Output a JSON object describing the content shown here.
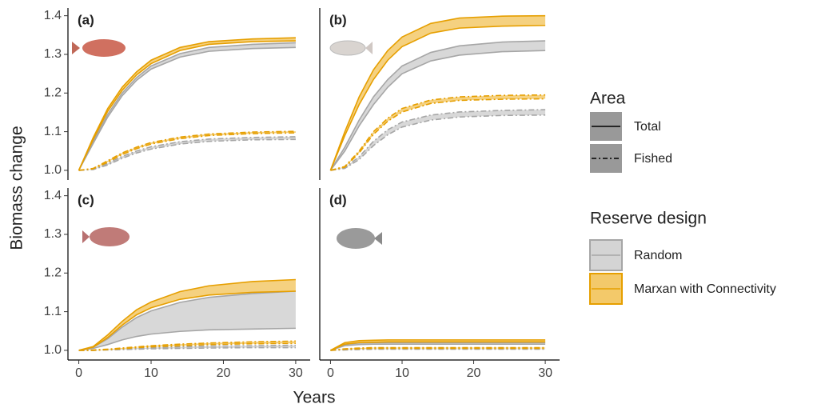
{
  "y_label": "Biomass change",
  "x_label": "Years",
  "legend": {
    "area": {
      "title": "Area",
      "total": "Total",
      "fished": "Fished"
    },
    "design": {
      "title": "Reserve design",
      "random": {
        "label": "Random",
        "color": "#a6a6a6",
        "fill": "#d4d4d4"
      },
      "marxan": {
        "label": "Marxan with Connectivity",
        "color": "#e69f00",
        "fill": "#f3c96a"
      }
    }
  },
  "chart_data": [
    {
      "type": "ribbon",
      "label": "(a)",
      "x": [
        0,
        2,
        4,
        6,
        8,
        10,
        14,
        18,
        24,
        30
      ],
      "xlim": [
        -1.5,
        32
      ],
      "ylim": [
        0.975,
        1.42
      ],
      "yticks": [
        {
          "value": 1.0,
          "label": "1.0"
        },
        1.1,
        1.2,
        1.3,
        1.4
      ],
      "ribbons": {
        "total": {
          "random": {
            "upper": [
              1,
              1.075,
              1.145,
              1.2,
              1.24,
              1.27,
              1.302,
              1.318,
              1.326,
              1.33
            ],
            "lower": [
              1,
              1.07,
              1.138,
              1.193,
              1.233,
              1.262,
              1.293,
              1.308,
              1.315,
              1.318
            ]
          },
          "marxan": {
            "upper": [
              1,
              1.085,
              1.16,
              1.215,
              1.255,
              1.285,
              1.318,
              1.333,
              1.34,
              1.343
            ],
            "lower": [
              1,
              1.08,
              1.153,
              1.207,
              1.247,
              1.276,
              1.31,
              1.326,
              1.333,
              1.335
            ]
          }
        },
        "fished": {
          "random": {
            "upper": [
              1,
              1.003,
              1.018,
              1.036,
              1.05,
              1.061,
              1.074,
              1.081,
              1.085,
              1.087
            ],
            "lower": [
              1,
              1.002,
              1.014,
              1.031,
              1.045,
              1.055,
              1.068,
              1.075,
              1.079,
              1.08
            ]
          },
          "marxan": {
            "upper": [
              1,
              1.005,
              1.025,
              1.045,
              1.06,
              1.072,
              1.086,
              1.094,
              1.099,
              1.101
            ],
            "lower": [
              1,
              1.004,
              1.021,
              1.041,
              1.056,
              1.068,
              1.082,
              1.09,
              1.095,
              1.097
            ]
          }
        }
      }
    },
    {
      "type": "ribbon",
      "label": "(b)",
      "x": [
        0,
        2,
        4,
        6,
        8,
        10,
        14,
        18,
        24,
        30
      ],
      "xlim": [
        -1.5,
        32
      ],
      "ylim": [
        0.975,
        1.42
      ],
      "ribbons": {
        "total": {
          "random": {
            "upper": [
              1,
              1.06,
              1.13,
              1.19,
              1.235,
              1.27,
              1.305,
              1.322,
              1.332,
              1.335
            ],
            "lower": [
              1,
              1.05,
              1.115,
              1.17,
              1.215,
              1.25,
              1.283,
              1.298,
              1.307,
              1.31
            ]
          },
          "marxan": {
            "upper": [
              1,
              1.1,
              1.19,
              1.26,
              1.31,
              1.345,
              1.38,
              1.394,
              1.399,
              1.4
            ],
            "lower": [
              1,
              1.09,
              1.17,
              1.235,
              1.285,
              1.32,
              1.355,
              1.368,
              1.373,
              1.375
            ]
          }
        },
        "fished": {
          "random": {
            "upper": [
              1,
              1.007,
              1.035,
              1.075,
              1.105,
              1.125,
              1.143,
              1.151,
              1.155,
              1.157
            ],
            "lower": [
              1,
              1.005,
              1.028,
              1.064,
              1.092,
              1.112,
              1.13,
              1.138,
              1.142,
              1.143
            ]
          },
          "marxan": {
            "upper": [
              1,
              1.01,
              1.05,
              1.1,
              1.135,
              1.16,
              1.182,
              1.19,
              1.194,
              1.195
            ],
            "lower": [
              1,
              1.008,
              1.045,
              1.093,
              1.127,
              1.151,
              1.173,
              1.181,
              1.184,
              1.185
            ]
          }
        }
      }
    },
    {
      "type": "ribbon",
      "label": "(c)",
      "x": [
        0,
        2,
        4,
        6,
        8,
        10,
        14,
        18,
        24,
        30
      ],
      "xlim": [
        -1.5,
        32
      ],
      "ylim": [
        0.975,
        1.42
      ],
      "xticks": [
        0,
        10,
        20,
        30
      ],
      "yticks": [
        {
          "value": 1.0,
          "label": "1.0"
        },
        1.1,
        1.2,
        1.3,
        1.4
      ],
      "ribbons": {
        "total": {
          "random": {
            "upper": [
              1,
              1.008,
              1.03,
              1.06,
              1.085,
              1.102,
              1.124,
              1.137,
              1.147,
              1.153
            ],
            "lower": [
              1,
              1.005,
              1.015,
              1.027,
              1.036,
              1.042,
              1.049,
              1.053,
              1.055,
              1.057
            ]
          },
          "marxan": {
            "upper": [
              1,
              1.01,
              1.04,
              1.075,
              1.105,
              1.125,
              1.152,
              1.167,
              1.178,
              1.183
            ],
            "lower": [
              1,
              1.008,
              1.033,
              1.065,
              1.092,
              1.11,
              1.132,
              1.143,
              1.15,
              1.153
            ]
          }
        },
        "fished": {
          "random": {
            "upper": [
              1,
              1,
              1.002,
              1.004,
              1.006,
              1.007,
              1.009,
              1.011,
              1.012,
              1.013
            ],
            "lower": [
              1,
              1,
              1.001,
              1.002,
              1.003,
              1.004,
              1.005,
              1.006,
              1.007,
              1.007
            ]
          },
          "marxan": {
            "upper": [
              1,
              1.001,
              1.003,
              1.006,
              1.009,
              1.012,
              1.016,
              1.019,
              1.022,
              1.024
            ],
            "lower": [
              1,
              1,
              1.002,
              1.004,
              1.007,
              1.009,
              1.012,
              1.015,
              1.017,
              1.018
            ]
          }
        }
      }
    },
    {
      "type": "ribbon",
      "label": "(d)",
      "x": [
        0,
        2,
        4,
        6,
        8,
        10,
        14,
        18,
        24,
        30
      ],
      "xlim": [
        -1.5,
        32
      ],
      "ylim": [
        0.975,
        1.42
      ],
      "xticks": [
        0,
        10,
        20,
        30
      ],
      "ribbons": {
        "total": {
          "random": {
            "upper": [
              1,
              1.015,
              1.019,
              1.02,
              1.02,
              1.02,
              1.02,
              1.02,
              1.02,
              1.02
            ],
            "lower": [
              1,
              1.012,
              1.015,
              1.016,
              1.016,
              1.016,
              1.016,
              1.016,
              1.016,
              1.016
            ]
          },
          "marxan": {
            "upper": [
              1,
              1.02,
              1.025,
              1.026,
              1.027,
              1.027,
              1.027,
              1.027,
              1.027,
              1.027
            ],
            "lower": [
              1,
              1.016,
              1.02,
              1.021,
              1.022,
              1.022,
              1.022,
              1.022,
              1.022,
              1.022
            ]
          }
        },
        "fished": {
          "random": {
            "upper": [
              1,
              1.002,
              1.003,
              1.004,
              1.004,
              1.004,
              1.004,
              1.004,
              1.004,
              1.004
            ],
            "lower": [
              1,
              1.001,
              1.002,
              1.003,
              1.003,
              1.003,
              1.003,
              1.003,
              1.003,
              1.003
            ]
          },
          "marxan": {
            "upper": [
              1,
              1.004,
              1.006,
              1.007,
              1.007,
              1.007,
              1.007,
              1.007,
              1.007,
              1.007
            ],
            "lower": [
              1,
              1.003,
              1.004,
              1.005,
              1.005,
              1.005,
              1.005,
              1.005,
              1.005,
              1.005
            ]
          }
        }
      }
    }
  ]
}
